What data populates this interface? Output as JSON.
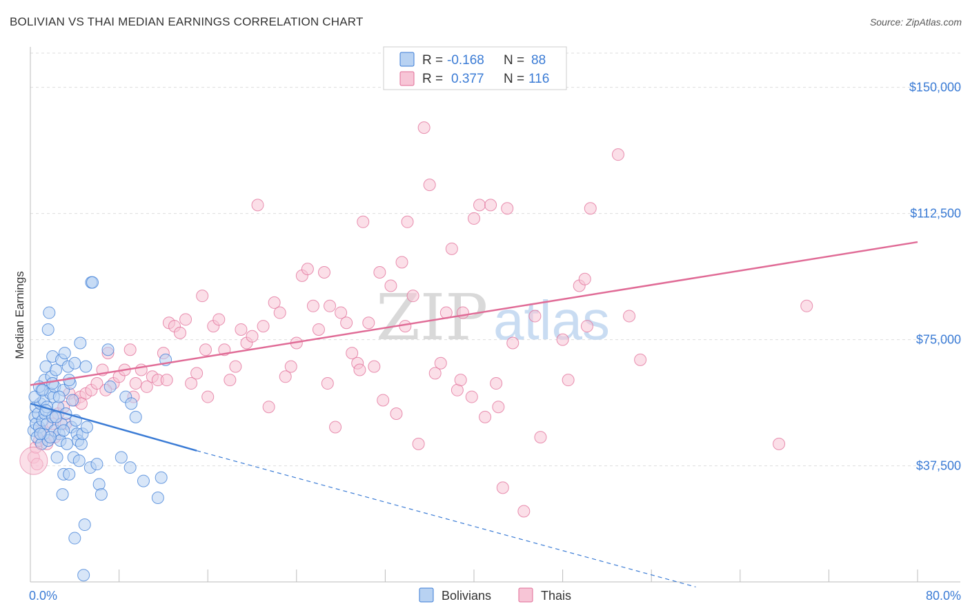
{
  "title": "BOLIVIAN VS THAI MEDIAN EARNINGS CORRELATION CHART",
  "source": "Source: ZipAtlas.com",
  "watermark": {
    "zip": "ZIP",
    "atlas": "atlas"
  },
  "colors": {
    "blue": "#3a7bd5",
    "blue_fill": "#b8d2f2",
    "pink": "#e06b96",
    "pink_fill": "#f7c5d6",
    "grid": "#dddddd",
    "axis": "#bbbbbb"
  },
  "legend": {
    "rows": [
      {
        "series": "Bolivians",
        "r_label": "R =",
        "r_value": "-0.168",
        "n_label": "N =",
        "n_value": "88"
      },
      {
        "series": "Thais",
        "r_label": "R =",
        "r_value": "0.377",
        "n_label": "N =",
        "n_value": "116"
      }
    ]
  },
  "chart_data": {
    "type": "scatter",
    "title": "BOLIVIAN VS THAI MEDIAN EARNINGS CORRELATION CHART",
    "ylabel": "Median Earnings",
    "xlabel": "",
    "xlim": [
      0,
      80
    ],
    "ylim": [
      3000,
      162000
    ],
    "x_tick_labels": [
      "0.0%",
      "80.0%"
    ],
    "y_ticks": [
      {
        "value": 37500,
        "label": "$37,500"
      },
      {
        "value": 75000,
        "label": "$75,000"
      },
      {
        "value": 112500,
        "label": "$112,500"
      },
      {
        "value": 150000,
        "label": "$150,000"
      }
    ],
    "series": [
      {
        "name": "Bolivians",
        "color": "#3a7bd5",
        "trend": {
          "x0": 0,
          "y0": 56000,
          "x1": 15,
          "y1": 42000,
          "dash_to_x": 60,
          "dash_to_y": 1500
        },
        "points": [
          [
            0.3,
            48000
          ],
          [
            0.4,
            52000
          ],
          [
            0.5,
            55000
          ],
          [
            0.5,
            50000
          ],
          [
            0.6,
            46000
          ],
          [
            0.7,
            53000
          ],
          [
            0.8,
            49000
          ],
          [
            0.9,
            56000
          ],
          [
            1.0,
            60000
          ],
          [
            1.0,
            44000
          ],
          [
            1.1,
            51000
          ],
          [
            1.2,
            57000
          ],
          [
            1.2,
            47000
          ],
          [
            1.3,
            63000
          ],
          [
            1.3,
            53000
          ],
          [
            1.4,
            67000
          ],
          [
            1.5,
            55000
          ],
          [
            1.5,
            50000
          ],
          [
            1.6,
            78000
          ],
          [
            1.6,
            45000
          ],
          [
            1.7,
            83000
          ],
          [
            1.8,
            59000
          ],
          [
            1.9,
            64000
          ],
          [
            2.0,
            52000
          ],
          [
            2.0,
            70000
          ],
          [
            2.1,
            58000
          ],
          [
            2.2,
            48000
          ],
          [
            2.2,
            61000
          ],
          [
            2.3,
            66000
          ],
          [
            2.4,
            40000
          ],
          [
            2.5,
            55000
          ],
          [
            2.6,
            47000
          ],
          [
            2.7,
            45000
          ],
          [
            2.8,
            50000
          ],
          [
            2.8,
            69000
          ],
          [
            2.9,
            29000
          ],
          [
            3.0,
            60000
          ],
          [
            3.0,
            35000
          ],
          [
            3.1,
            71000
          ],
          [
            3.2,
            53000
          ],
          [
            3.3,
            44000
          ],
          [
            3.4,
            67000
          ],
          [
            3.5,
            35000
          ],
          [
            3.6,
            62000
          ],
          [
            3.7,
            49000
          ],
          [
            3.8,
            57000
          ],
          [
            3.9,
            40000
          ],
          [
            4.0,
            68000
          ],
          [
            4.0,
            16000
          ],
          [
            4.1,
            51000
          ],
          [
            4.2,
            47000
          ],
          [
            4.3,
            45000
          ],
          [
            4.4,
            39000
          ],
          [
            4.5,
            74000
          ],
          [
            4.6,
            44000
          ],
          [
            4.7,
            47000
          ],
          [
            4.8,
            5000
          ],
          [
            4.9,
            20000
          ],
          [
            5.0,
            67000
          ],
          [
            5.1,
            49000
          ],
          [
            5.4,
            37000
          ],
          [
            5.5,
            92000
          ],
          [
            5.6,
            92000
          ],
          [
            6.0,
            38000
          ],
          [
            6.2,
            32000
          ],
          [
            6.4,
            29000
          ],
          [
            7.0,
            72000
          ],
          [
            7.2,
            61000
          ],
          [
            8.2,
            40000
          ],
          [
            8.6,
            58000
          ],
          [
            9.0,
            37000
          ],
          [
            9.1,
            56000
          ],
          [
            9.5,
            52000
          ],
          [
            10.2,
            33000
          ],
          [
            11.5,
            28000
          ],
          [
            11.8,
            34000
          ],
          [
            12.2,
            69000
          ],
          [
            0.8,
            61000
          ],
          [
            1.8,
            46000
          ],
          [
            2.6,
            58000
          ],
          [
            3.5,
            63000
          ],
          [
            0.4,
            58000
          ],
          [
            1.1,
            60000
          ],
          [
            2.0,
            62000
          ],
          [
            1.4,
            54000
          ],
          [
            0.9,
            47000
          ],
          [
            2.3,
            52000
          ],
          [
            3.0,
            48000
          ]
        ]
      },
      {
        "name": "Thais",
        "color": "#e06b96",
        "trend": {
          "x0": 0,
          "y0": 61500,
          "x1": 80,
          "y1": 104000
        },
        "points": [
          [
            0.3,
            40000
          ],
          [
            0.5,
            43000
          ],
          [
            0.8,
            45000
          ],
          [
            1.0,
            48000
          ],
          [
            1.5,
            44000
          ],
          [
            2.0,
            50000
          ],
          [
            2.5,
            53000
          ],
          [
            3.0,
            55000
          ],
          [
            3.5,
            59000
          ],
          [
            4.0,
            57000
          ],
          [
            4.5,
            58000
          ],
          [
            5.0,
            59000
          ],
          [
            5.5,
            60000
          ],
          [
            6.0,
            62000
          ],
          [
            6.5,
            66000
          ],
          [
            7.0,
            71000
          ],
          [
            7.5,
            62000
          ],
          [
            8.0,
            64000
          ],
          [
            8.5,
            66000
          ],
          [
            9.0,
            72000
          ],
          [
            9.5,
            62000
          ],
          [
            10.0,
            66000
          ],
          [
            10.5,
            61000
          ],
          [
            11.0,
            64000
          ],
          [
            11.5,
            63000
          ],
          [
            12.0,
            71000
          ],
          [
            12.5,
            80000
          ],
          [
            13.0,
            79000
          ],
          [
            13.5,
            77000
          ],
          [
            14.0,
            81000
          ],
          [
            14.5,
            62000
          ],
          [
            15.0,
            65000
          ],
          [
            15.5,
            88000
          ],
          [
            16.0,
            58000
          ],
          [
            16.5,
            79000
          ],
          [
            17.0,
            81000
          ],
          [
            17.5,
            72000
          ],
          [
            18.0,
            63000
          ],
          [
            18.5,
            67000
          ],
          [
            19.0,
            78000
          ],
          [
            19.5,
            74000
          ],
          [
            20.0,
            76000
          ],
          [
            20.5,
            115000
          ],
          [
            21.0,
            79000
          ],
          [
            21.5,
            55000
          ],
          [
            22.0,
            86000
          ],
          [
            22.5,
            83000
          ],
          [
            23.0,
            64000
          ],
          [
            23.5,
            67000
          ],
          [
            24.0,
            74000
          ],
          [
            24.5,
            94000
          ],
          [
            25.0,
            96000
          ],
          [
            25.5,
            85000
          ],
          [
            26.0,
            78000
          ],
          [
            26.5,
            95000
          ],
          [
            27.0,
            85000
          ],
          [
            27.5,
            49000
          ],
          [
            28.0,
            83000
          ],
          [
            28.5,
            80000
          ],
          [
            29.0,
            71000
          ],
          [
            29.5,
            68000
          ],
          [
            30.0,
            110000
          ],
          [
            30.5,
            80000
          ],
          [
            31.0,
            67000
          ],
          [
            31.5,
            95000
          ],
          [
            31.8,
            57000
          ],
          [
            32.5,
            91000
          ],
          [
            33.0,
            53000
          ],
          [
            33.5,
            98000
          ],
          [
            34.0,
            110000
          ],
          [
            34.5,
            88000
          ],
          [
            35.0,
            44000
          ],
          [
            35.5,
            138000
          ],
          [
            36.0,
            121000
          ],
          [
            36.5,
            65000
          ],
          [
            37.0,
            68000
          ],
          [
            37.5,
            83000
          ],
          [
            38.0,
            102000
          ],
          [
            38.5,
            60000
          ],
          [
            38.8,
            63000
          ],
          [
            39.0,
            83000
          ],
          [
            39.8,
            58000
          ],
          [
            40.0,
            111000
          ],
          [
            40.5,
            115000
          ],
          [
            41.0,
            52000
          ],
          [
            41.5,
            115000
          ],
          [
            42.0,
            62000
          ],
          [
            42.2,
            55000
          ],
          [
            42.6,
            31000
          ],
          [
            43.0,
            114000
          ],
          [
            43.5,
            74000
          ],
          [
            44.5,
            24000
          ],
          [
            45.5,
            82000
          ],
          [
            46.0,
            46000
          ],
          [
            48.0,
            75000
          ],
          [
            48.5,
            63000
          ],
          [
            49.5,
            91000
          ],
          [
            50.0,
            93000
          ],
          [
            50.2,
            79000
          ],
          [
            50.5,
            114000
          ],
          [
            53.0,
            130000
          ],
          [
            54.0,
            82000
          ],
          [
            55.0,
            69000
          ],
          [
            67.5,
            44000
          ],
          [
            70.0,
            85000
          ],
          [
            9.3,
            58000
          ],
          [
            12.3,
            63000
          ],
          [
            15.8,
            72000
          ],
          [
            26.8,
            62000
          ],
          [
            29.7,
            66000
          ],
          [
            33.8,
            79000
          ],
          [
            4.6,
            56000
          ],
          [
            6.8,
            60000
          ],
          [
            3.2,
            50000
          ],
          [
            2.2,
            46000
          ],
          [
            0.6,
            38000
          ]
        ]
      }
    ]
  }
}
